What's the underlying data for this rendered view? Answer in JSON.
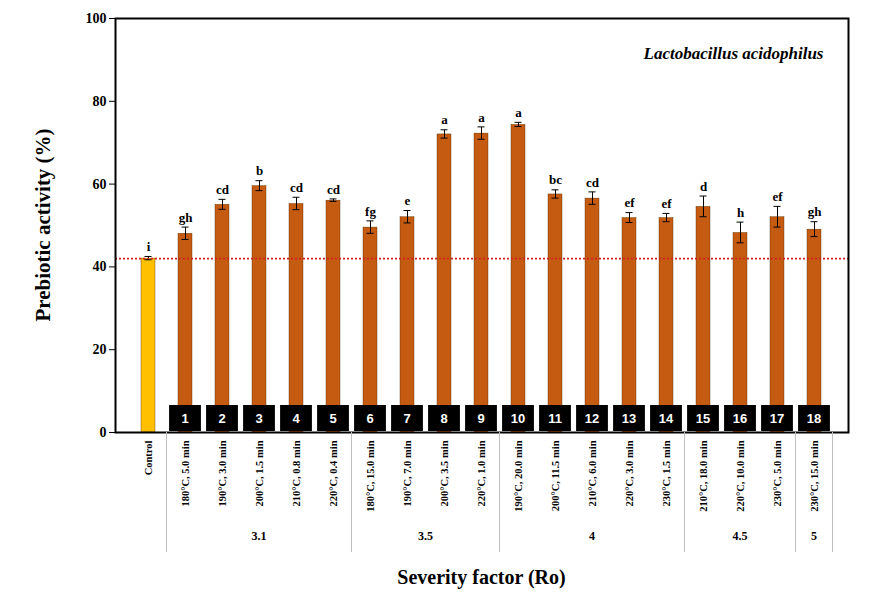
{
  "chart_data": {
    "type": "bar",
    "annotation": "Lactobacillus acidophilus",
    "y_label": "Prebiotic activity (%)",
    "x_label": "Severity factor (Ro)",
    "categories": [
      "Control",
      "180°C, 5.0 min",
      "190°C, 3.0 min",
      "200°C, 1.5 min",
      "210°C, 0.8 min",
      "220°C, 0.4 min",
      "180°C, 15.0 min",
      "190°C, 7.0 min",
      "200°C, 3.5 min",
      "220°C, 1.0 min",
      "190°C, 20.0 min",
      "200°C, 11.5 min",
      "210°C, 6.0 min",
      "220°C, 3.0 min",
      "230°C, 1.5 min",
      "210°C, 18.0 min",
      "220°C, 10.0 min",
      "230°C, 5.0 min",
      "230°C, 15.0 min"
    ],
    "values": [
      42,
      48,
      55,
      59.5,
      55.2,
      56,
      49.5,
      52,
      72,
      72.2,
      74.3,
      57.5,
      56.5,
      51.8,
      51.8,
      54.5,
      48.2,
      52,
      49
    ],
    "errors": [
      0.4,
      1.5,
      1.2,
      1.2,
      1.5,
      0.3,
      1.5,
      1.5,
      1,
      1.5,
      0.5,
      1,
      1.5,
      1.2,
      1,
      2.5,
      2.5,
      2.5,
      1.8
    ],
    "significance_letters": [
      "i",
      "gh",
      "cd",
      "b",
      "cd",
      "cd",
      "fg",
      "e",
      "a",
      "a",
      "a",
      "bc",
      "cd",
      "ef",
      "ef",
      "d",
      "h",
      "ef",
      "gh"
    ],
    "bar_numbers": [
      null,
      1,
      2,
      3,
      4,
      5,
      6,
      7,
      8,
      9,
      10,
      11,
      12,
      13,
      14,
      15,
      16,
      17,
      18
    ],
    "groups": [
      {
        "label": "3.1",
        "count": 5
      },
      {
        "label": "3.5",
        "count": 4
      },
      {
        "label": "4",
        "count": 5
      },
      {
        "label": "4.5",
        "count": 3
      },
      {
        "label": "5",
        "count": 1
      }
    ],
    "reference_line": 42,
    "colors": [
      "#FFC000",
      "#C55A11",
      "#C55A11",
      "#C55A11",
      "#C55A11",
      "#C55A11",
      "#C55A11",
      "#C55A11",
      "#C55A11",
      "#C55A11",
      "#C55A11",
      "#C55A11",
      "#C55A11",
      "#C55A11",
      "#C55A11",
      "#C55A11",
      "#C55A11",
      "#C55A11",
      "#C55A11"
    ],
    "ylim": [
      0,
      100
    ],
    "yticks": [
      0,
      20,
      40,
      60,
      80,
      100
    ],
    "grid": false
  }
}
